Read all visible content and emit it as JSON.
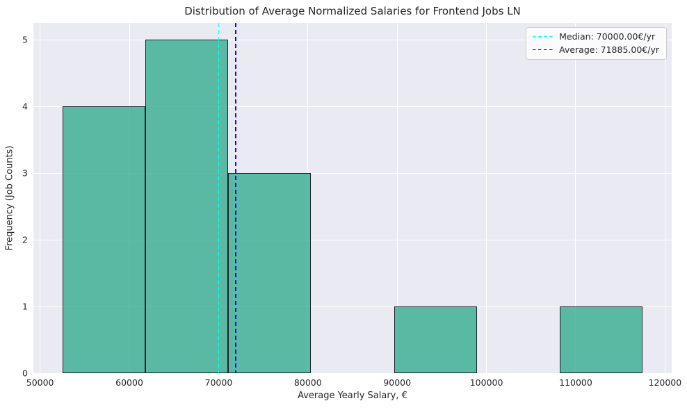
{
  "chart_data": {
    "type": "bar",
    "subtype": "histogram",
    "title": "Distribution of Average Normalized Salaries for Frontend Jobs LN",
    "xlabel": "Average Yearly Salary, €",
    "ylabel": "Frequency (Job Counts)",
    "bin_edges": [
      52500,
      61785.71,
      71071.43,
      80357.14,
      89642.86,
      98928.57,
      108214.29,
      117500
    ],
    "counts": [
      4,
      5,
      3,
      0,
      1,
      0,
      1
    ],
    "median_value": 70000,
    "average_value": 71885,
    "xlim": [
      49250,
      120750
    ],
    "ylim": [
      0,
      5.25
    ],
    "xticks": [
      50000,
      60000,
      70000,
      80000,
      90000,
      100000,
      110000,
      120000
    ],
    "yticks": [
      0,
      1,
      2,
      3,
      4,
      5
    ],
    "grid": true,
    "legend": {
      "position": "upper right",
      "items": [
        {
          "label": "Median: 70000.00€/yr",
          "color": "#00ffff",
          "style": "dashed"
        },
        {
          "label": "Average: 71885.00€/yr",
          "color": "#0d0de0",
          "style": "dashed"
        }
      ]
    },
    "colors": {
      "bar_fill": "rgba(42, 168, 135, 0.75)",
      "bar_edge": "rgba(22, 22, 32, 0.92)",
      "plot_background": "#eaeaf2",
      "gridline": "#ffffff",
      "median_line": "#00ffff",
      "average_line": "#0d0de0",
      "text": "#262626"
    }
  }
}
